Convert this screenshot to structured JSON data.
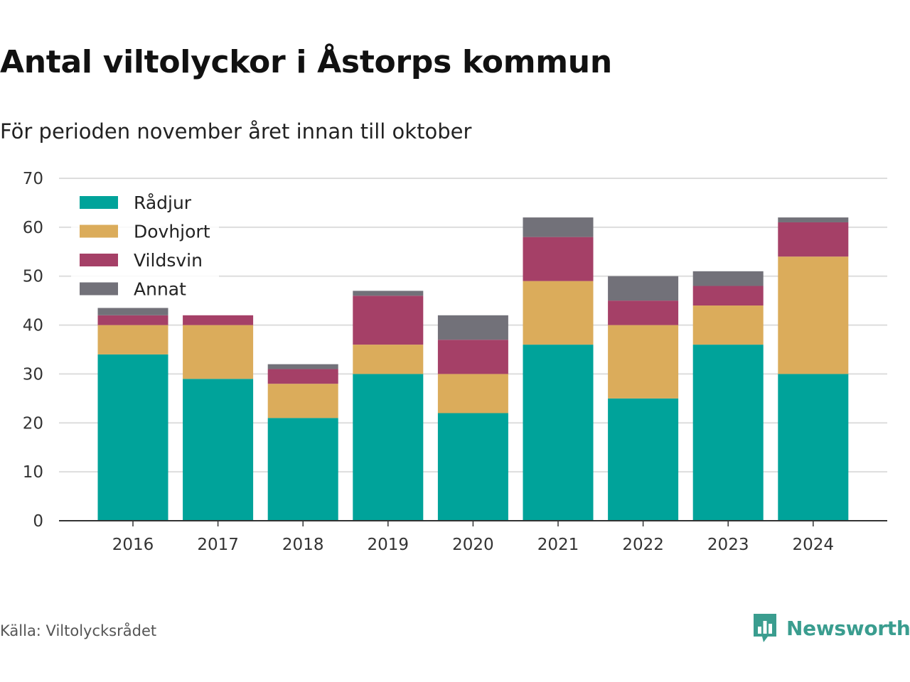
{
  "header": {
    "title": "Antal viltolyckor i Åstorps kommun",
    "subtitle": "För perioden november året innan till oktober"
  },
  "footer": {
    "source": "Källa: Viltolycksrådet",
    "brand": "Newsworthy",
    "brand_icon": "bar-chart-speech-bubble-icon",
    "brand_color": "#3a9d8f"
  },
  "chart_data": {
    "type": "bar",
    "stacked": true,
    "title": "Antal viltolyckor i Åstorps kommun",
    "subtitle": "För perioden november året innan till oktober",
    "xlabel": "",
    "ylabel": "",
    "ylim": [
      0,
      70
    ],
    "yticks": [
      0,
      10,
      20,
      30,
      40,
      50,
      60,
      70
    ],
    "grid": true,
    "legend_position": "top-left",
    "categories": [
      "2016",
      "2017",
      "2018",
      "2019",
      "2020",
      "2021",
      "2022",
      "2023",
      "2024"
    ],
    "series": [
      {
        "name": "Rådjur",
        "color": "#00a39a",
        "values": [
          34,
          29,
          21,
          30,
          22,
          36,
          25,
          36,
          30
        ]
      },
      {
        "name": "Dovhjort",
        "color": "#dbac5b",
        "values": [
          6,
          11,
          7,
          6,
          8,
          13,
          15,
          8,
          24
        ]
      },
      {
        "name": "Vildsvin",
        "color": "#a54067",
        "values": [
          2,
          2,
          3,
          10,
          7,
          9,
          5,
          4,
          7
        ]
      },
      {
        "name": "Annat",
        "color": "#727179",
        "values": [
          1.5,
          0,
          1,
          1,
          5,
          4,
          5,
          3,
          1
        ]
      }
    ]
  }
}
